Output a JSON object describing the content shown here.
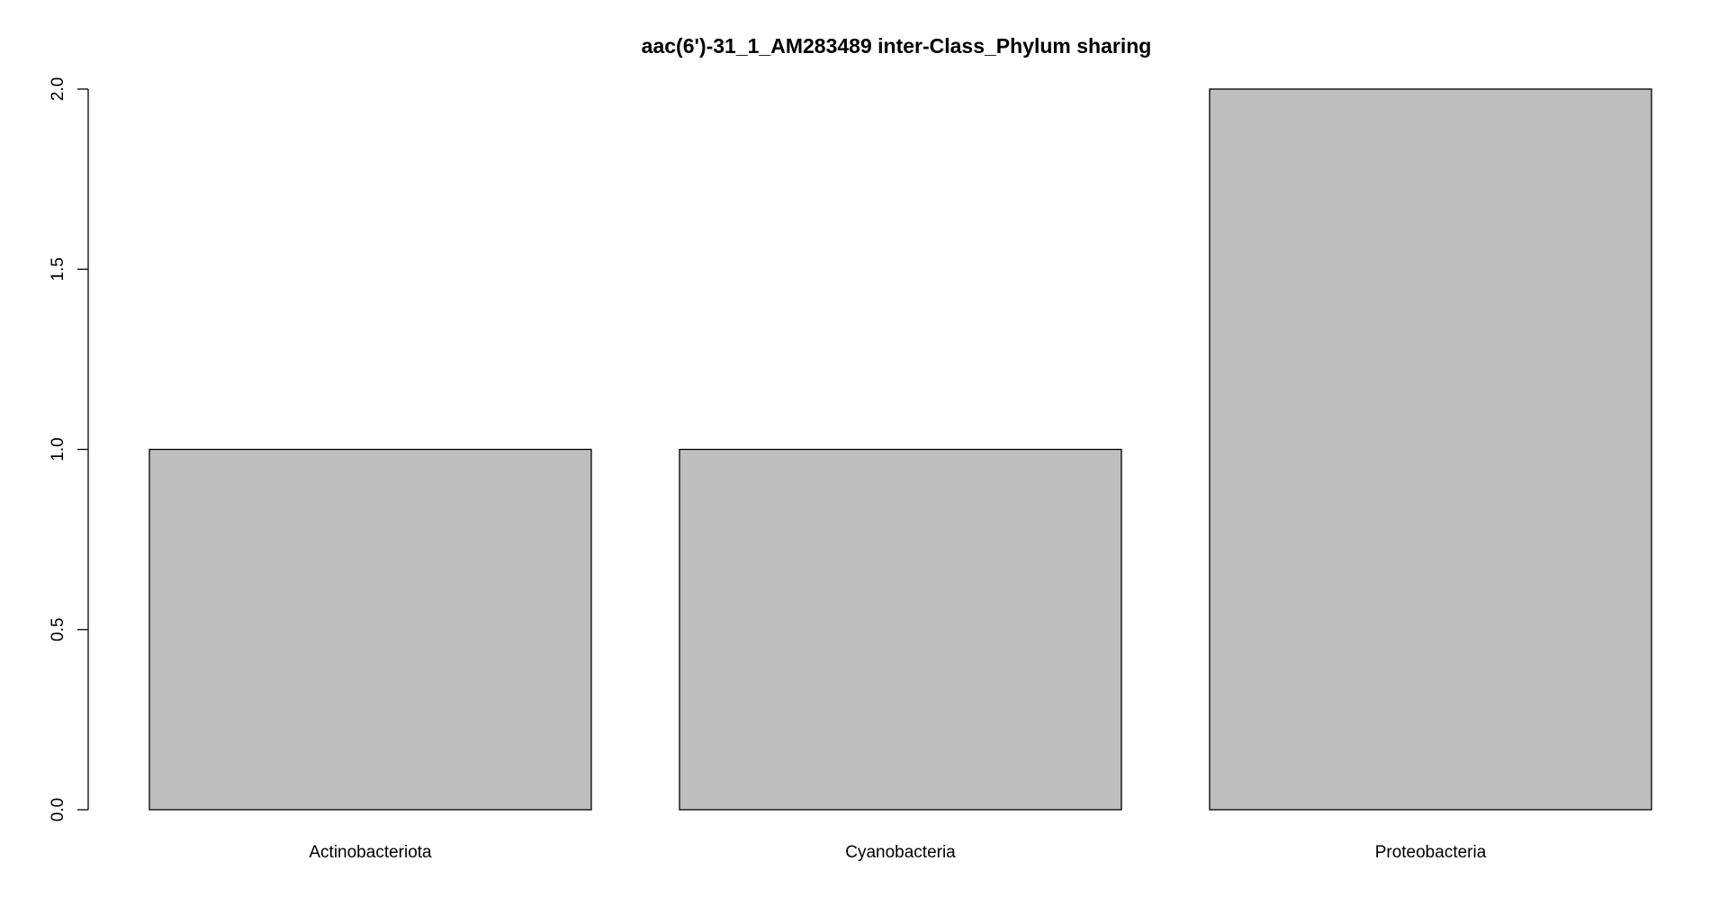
{
  "chart_data": {
    "type": "bar",
    "title": "aac(6')-31_1_AM283489 inter-Class_Phylum sharing",
    "xlabel": "",
    "ylabel": "",
    "categories": [
      "Actinobacteriota",
      "Cyanobacteria",
      "Proteobacteria"
    ],
    "values": [
      1,
      1,
      2
    ],
    "ylim": [
      0,
      2
    ],
    "yticks": [
      0.0,
      0.5,
      1.0,
      1.5,
      2.0
    ],
    "ytick_labels": [
      "0.0",
      "0.5",
      "1.0",
      "1.5",
      "2.0"
    ],
    "grid": false,
    "legend": "none",
    "bar_color": "#bebebe",
    "bar_border_color": "#000000"
  }
}
